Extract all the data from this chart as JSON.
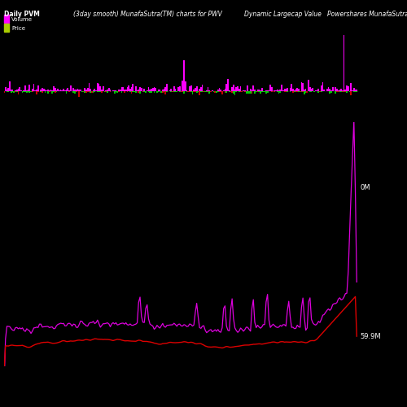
{
  "title_left": "Daily PVM",
  "title_center": "(3day smooth) MunafaSutra(TM) charts for PWV",
  "title_right": "Dynamic Largecap Value   Powershares MunafaSutra.com",
  "legend_volume_label": "Volume",
  "legend_price_label": "Price",
  "volume_color_up": "#ff00ff",
  "volume_color_down": "#00cc00",
  "volume_color_down2": "#cc0000",
  "price_line_color": "#dd0000",
  "pvm_line_color": "#dd00dd",
  "background_color": "#000000",
  "label_right_top": "0M",
  "label_right_bottom": "59.9M",
  "n_points": 250,
  "seed": 7
}
